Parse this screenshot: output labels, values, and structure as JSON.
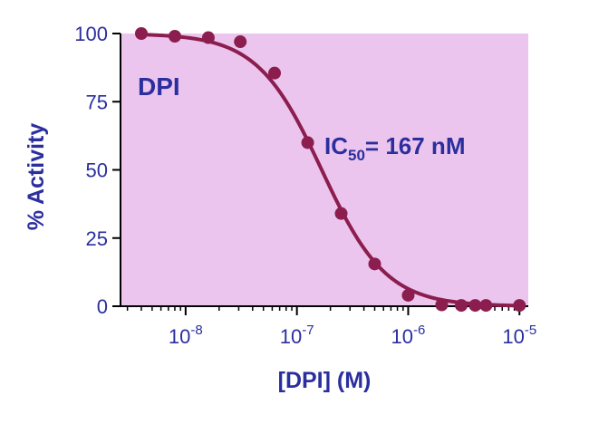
{
  "chart_data": {
    "type": "scatter",
    "title": "",
    "xlabel": "[DPI] (M)",
    "ylabel": "% Activity",
    "xscale": "log",
    "xlim": [
      2.6e-09,
      1.2e-05
    ],
    "ylim": [
      0,
      100
    ],
    "x_ticks": [
      {
        "value": 1e-08,
        "base": "10",
        "exp": "-8"
      },
      {
        "value": 1e-07,
        "base": "10",
        "exp": "-7"
      },
      {
        "value": 1e-06,
        "base": "10",
        "exp": "-6"
      },
      {
        "value": 1e-05,
        "base": "10",
        "exp": "-5"
      }
    ],
    "y_ticks": [
      0,
      25,
      50,
      75,
      100
    ],
    "grid": false,
    "colors": {
      "plot_background": "#ecc5ee",
      "series": "#8b1e4e",
      "text": "#2b2f9e",
      "axis": "#000000"
    },
    "series": [
      {
        "name": "",
        "x": [
          4e-09,
          8e-09,
          1.6e-08,
          3.1e-08,
          6.3e-08,
          1.25e-07,
          2.5e-07,
          5e-07,
          1e-06,
          2e-06,
          3e-06,
          4e-06,
          5e-06,
          1e-05
        ],
        "y": [
          100,
          99,
          98.5,
          97,
          85.5,
          60,
          34,
          15.5,
          4,
          0.5,
          0.3,
          0.3,
          0.3,
          0.3
        ]
      }
    ],
    "fit": {
      "ic50": 1.67e-07,
      "hill": 1.5,
      "top": 100,
      "bottom": 0
    },
    "annotations": {
      "label": "DPI",
      "ic50_prefix": "IC",
      "ic50_sub": "50",
      "ic50_suffix": "= 167 nM"
    }
  }
}
